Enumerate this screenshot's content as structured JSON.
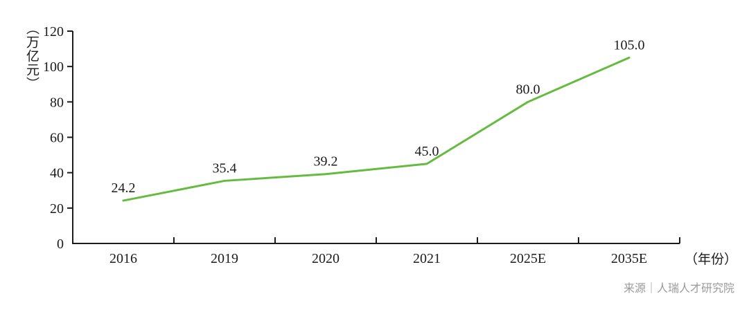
{
  "chart_data": {
    "type": "line",
    "title": "",
    "categories": [
      "2016",
      "2019",
      "2020",
      "2021",
      "2025E",
      "2035E"
    ],
    "values": [
      24.2,
      35.4,
      39.2,
      45.0,
      80.0,
      105.0
    ],
    "value_labels": [
      "24.2",
      "35.4",
      "39.2",
      "45.0",
      "80.0",
      "105.0"
    ],
    "series_name": "",
    "y_ticks": [
      0,
      20,
      40,
      60,
      80,
      100,
      120
    ],
    "ylim": [
      0,
      120
    ],
    "y_unit": "（万亿元）",
    "x_unit": "（年份）",
    "xlabel": "年份",
    "ylabel": "万亿元",
    "line_color": "#65bb40",
    "axis_color": "#1b1b1b",
    "grid": false,
    "legend": "none"
  },
  "footer": {
    "source": "来源｜人瑞人才研究院"
  }
}
